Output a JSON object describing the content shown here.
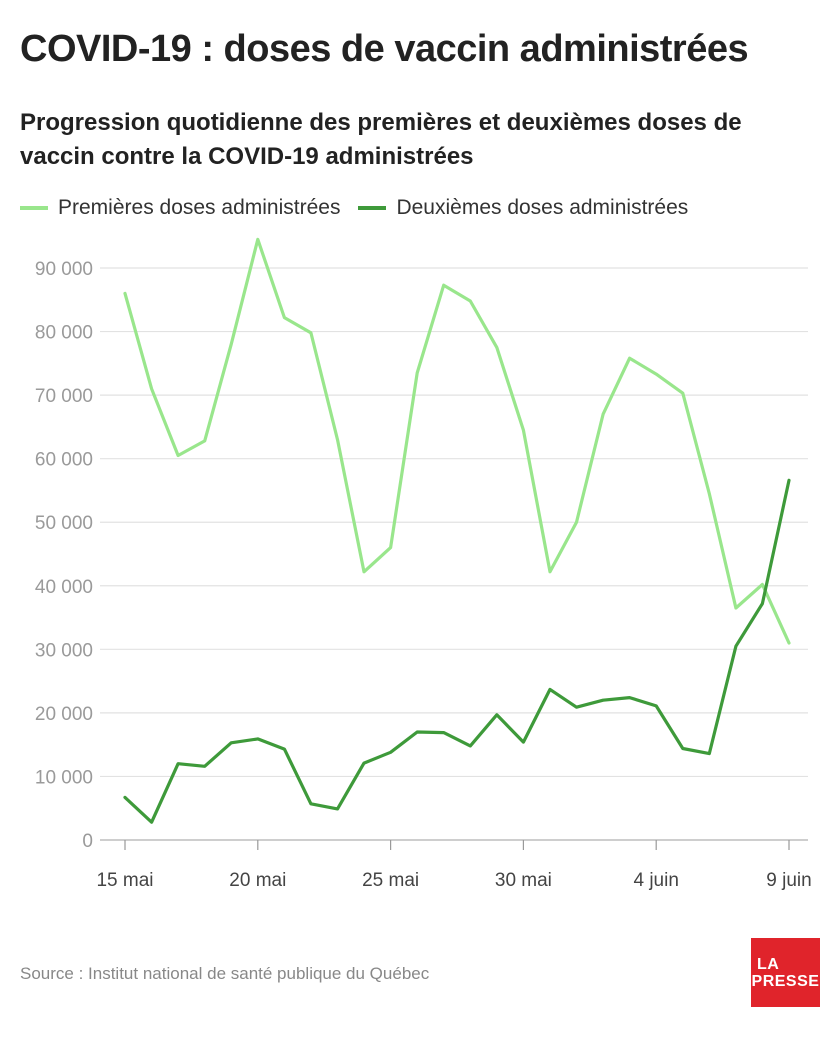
{
  "header": {
    "title": "COVID-19 : doses de vaccin administrées",
    "subtitle": "Progression quotidienne des premières et deuxièmes doses de vaccin contre la COVID-19 administrées"
  },
  "footer": {
    "source": "Source : Institut national de santé publique du Québec",
    "logo_line1": "LA",
    "logo_line2": "PRESSE",
    "logo_color": "#e0242b"
  },
  "chart_data": {
    "type": "line",
    "x": [
      "15 mai",
      "16 mai",
      "17 mai",
      "18 mai",
      "19 mai",
      "20 mai",
      "21 mai",
      "22 mai",
      "23 mai",
      "24 mai",
      "25 mai",
      "26 mai",
      "27 mai",
      "28 mai",
      "29 mai",
      "30 mai",
      "31 mai",
      "1 juin",
      "2 juin",
      "3 juin",
      "4 juin",
      "5 juin",
      "6 juin",
      "7 juin",
      "8 juin",
      "9 juin"
    ],
    "x_tick_labels": [
      {
        "index": 0,
        "label": "15 mai"
      },
      {
        "index": 5,
        "label": "20 mai"
      },
      {
        "index": 10,
        "label": "25 mai"
      },
      {
        "index": 15,
        "label": "30 mai"
      },
      {
        "index": 20,
        "label": "4 juin"
      },
      {
        "index": 25,
        "label": "9 juin"
      }
    ],
    "series": [
      {
        "name": "Premières doses administrées",
        "color": "#99e68c",
        "values": [
          86000,
          71000,
          60500,
          62800,
          78000,
          94500,
          82200,
          79800,
          63000,
          42200,
          46000,
          73500,
          87300,
          84800,
          77500,
          64500,
          42200,
          50000,
          67000,
          75800,
          73300,
          70300,
          54500,
          36500,
          40200,
          31000
        ]
      },
      {
        "name": "Deuxièmes doses administrées",
        "color": "#3e9a3a",
        "values": [
          6700,
          2800,
          12000,
          11600,
          15300,
          15900,
          14300,
          5700,
          4900,
          12100,
          13800,
          17000,
          16900,
          14800,
          19700,
          15400,
          23700,
          20900,
          22000,
          22400,
          21100,
          14400,
          13600,
          30500,
          37200,
          56600
        ]
      }
    ],
    "y_ticks": [
      "0",
      "10 000",
      "20 000",
      "30 000",
      "40 000",
      "50 000",
      "60 000",
      "70 000",
      "80 000",
      "90 000"
    ],
    "ylim": [
      0,
      90000
    ],
    "grid": true,
    "legend_position": "top-left"
  }
}
